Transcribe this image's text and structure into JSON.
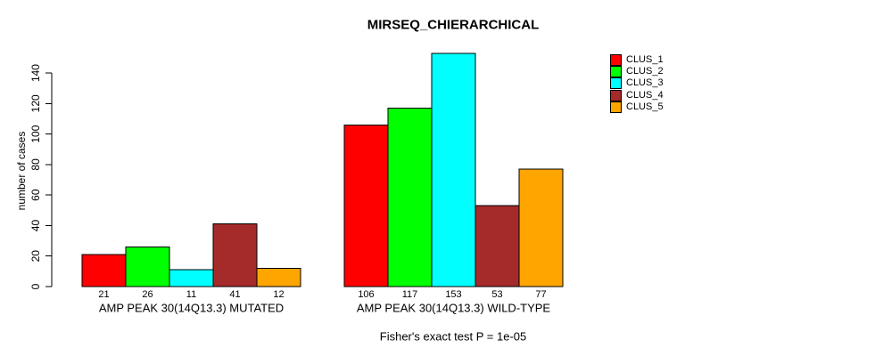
{
  "chart_data": {
    "type": "bar",
    "title": "MIRSEQ_CHIERARCHICAL",
    "ylabel": "number of cases",
    "xlabel": "",
    "footnote": "Fisher's exact test P = 1e-05",
    "categories": [
      "AMP PEAK 30(14Q13.3) MUTATED",
      "AMP PEAK 30(14Q13.3) WILD-TYPE"
    ],
    "series": [
      {
        "name": "CLUS_1",
        "color": "#FF0000",
        "values": [
          21,
          106
        ]
      },
      {
        "name": "CLUS_2",
        "color": "#00FF00",
        "values": [
          26,
          117
        ]
      },
      {
        "name": "CLUS_3",
        "color": "#00FFFF",
        "values": [
          11,
          153
        ]
      },
      {
        "name": "CLUS_4",
        "color": "#A52A2A",
        "values": [
          41,
          53
        ]
      },
      {
        "name": "CLUS_5",
        "color": "#FFA500",
        "values": [
          12,
          77
        ]
      }
    ],
    "y_ticks": [
      0,
      20,
      40,
      60,
      80,
      100,
      120,
      140
    ],
    "ylim": [
      0,
      153
    ],
    "bar_value_labels_shown": true,
    "legend_position": "right",
    "grid": false,
    "background": "#FFFFFF",
    "axis_color": "#000000"
  }
}
